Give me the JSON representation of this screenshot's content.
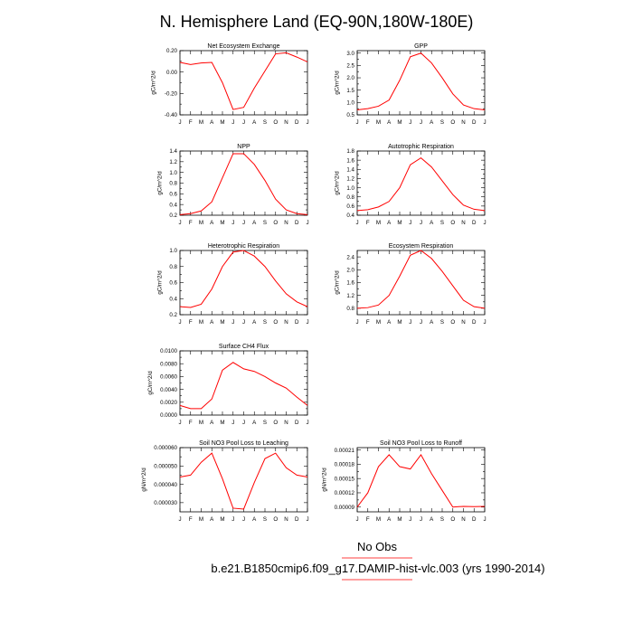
{
  "title": "N. Hemisphere Land (EQ-90N,180W-180E)",
  "legend_label": "No Obs",
  "case_label": "b.e21.B1850cmip6.f09_g17.DAMIP-hist-vlc.003 (yrs 1990-2014)",
  "colors": {
    "series": "#ff0000",
    "legend_line": "#ff0000"
  },
  "chart_data": [
    {
      "type": "line",
      "title": "Net Ecosystem Exchange",
      "ylabel": "gC/m^2/d",
      "categories": [
        "J",
        "F",
        "M",
        "A",
        "M",
        "J",
        "J",
        "A",
        "S",
        "O",
        "N",
        "D",
        "J"
      ],
      "values": [
        0.09,
        0.07,
        0.085,
        0.09,
        -0.1,
        -0.35,
        -0.33,
        -0.15,
        0.01,
        0.17,
        0.18,
        0.14,
        0.095
      ],
      "ylim": [
        -0.4,
        0.2
      ],
      "yticks": [
        "-0.40",
        "-0.20",
        "0.00",
        "0.20"
      ],
      "ytick_values": [
        -0.4,
        -0.2,
        0.0,
        0.2
      ]
    },
    {
      "type": "line",
      "title": "GPP",
      "ylabel": "gC/m^2/d",
      "categories": [
        "J",
        "F",
        "M",
        "A",
        "M",
        "J",
        "J",
        "A",
        "S",
        "O",
        "N",
        "D",
        "J"
      ],
      "values": [
        0.7,
        0.75,
        0.85,
        1.1,
        1.9,
        2.85,
        3.0,
        2.6,
        2.0,
        1.35,
        0.9,
        0.75,
        0.7
      ],
      "ylim": [
        0.5,
        3.1
      ],
      "yticks": [
        "0.5",
        "1.0",
        "1.5",
        "2.0",
        "2.5",
        "3.0"
      ],
      "ytick_values": [
        0.5,
        1.0,
        1.5,
        2.0,
        2.5,
        3.0
      ]
    },
    {
      "type": "line",
      "title": "NPP",
      "ylabel": "gC/m^2/d",
      "categories": [
        "J",
        "F",
        "M",
        "A",
        "M",
        "J",
        "J",
        "A",
        "S",
        "O",
        "N",
        "D",
        "J"
      ],
      "values": [
        0.21,
        0.23,
        0.28,
        0.45,
        0.9,
        1.35,
        1.35,
        1.15,
        0.85,
        0.5,
        0.3,
        0.23,
        0.21
      ],
      "ylim": [
        0.2,
        1.4
      ],
      "yticks": [
        "0.2",
        "0.4",
        "0.6",
        "0.8",
        "1.0",
        "1.2",
        "1.4"
      ],
      "ytick_values": [
        0.2,
        0.4,
        0.6,
        0.8,
        1.0,
        1.2,
        1.4
      ]
    },
    {
      "type": "line",
      "title": "Autotrophic Respiration",
      "ylabel": "gC/m^2/d",
      "categories": [
        "J",
        "F",
        "M",
        "A",
        "M",
        "J",
        "J",
        "A",
        "S",
        "O",
        "N",
        "D",
        "J"
      ],
      "values": [
        0.5,
        0.52,
        0.58,
        0.7,
        1.0,
        1.5,
        1.65,
        1.45,
        1.15,
        0.85,
        0.62,
        0.53,
        0.5
      ],
      "ylim": [
        0.4,
        1.8
      ],
      "yticks": [
        "0.4",
        "0.6",
        "0.8",
        "1.0",
        "1.2",
        "1.4",
        "1.6",
        "1.8"
      ],
      "ytick_values": [
        0.4,
        0.6,
        0.8,
        1.0,
        1.2,
        1.4,
        1.6,
        1.8
      ]
    },
    {
      "type": "line",
      "title": "Heterotrophic Respiration",
      "ylabel": "gC/m^2/d",
      "categories": [
        "J",
        "F",
        "M",
        "A",
        "M",
        "J",
        "J",
        "A",
        "S",
        "O",
        "N",
        "D",
        "J"
      ],
      "values": [
        0.3,
        0.29,
        0.33,
        0.52,
        0.8,
        0.98,
        1.0,
        0.93,
        0.8,
        0.62,
        0.46,
        0.36,
        0.3
      ],
      "ylim": [
        0.2,
        1.0
      ],
      "yticks": [
        "0.2",
        "0.4",
        "0.6",
        "0.8",
        "1.0"
      ],
      "ytick_values": [
        0.2,
        0.4,
        0.6,
        0.8,
        1.0
      ]
    },
    {
      "type": "line",
      "title": "Ecosystem Respiration",
      "ylabel": "gC/m^2/d",
      "categories": [
        "J",
        "F",
        "M",
        "A",
        "M",
        "J",
        "J",
        "A",
        "S",
        "O",
        "N",
        "D",
        "J"
      ],
      "values": [
        0.8,
        0.82,
        0.9,
        1.2,
        1.8,
        2.45,
        2.6,
        2.35,
        1.95,
        1.5,
        1.05,
        0.85,
        0.8
      ],
      "ylim": [
        0.6,
        2.6
      ],
      "yticks": [
        "0.8",
        "1.2",
        "1.6",
        "2.0",
        "2.4"
      ],
      "ytick_values": [
        0.8,
        1.2,
        1.6,
        2.0,
        2.4
      ]
    },
    {
      "type": "line",
      "title": "Surface CH4 Flux",
      "ylabel": "gC/m^2/d",
      "categories": [
        "J",
        "F",
        "M",
        "A",
        "M",
        "J",
        "J",
        "A",
        "S",
        "O",
        "N",
        "D",
        "J"
      ],
      "values": [
        0.0015,
        0.001,
        0.001,
        0.0025,
        0.007,
        0.0082,
        0.0072,
        0.0068,
        0.006,
        0.005,
        0.0042,
        0.0028,
        0.0015
      ],
      "ylim": [
        0.0,
        0.01
      ],
      "yticks": [
        "0.0000",
        "0.0020",
        "0.0040",
        "0.0060",
        "0.0080",
        "0.0100"
      ],
      "ytick_values": [
        0.0,
        0.002,
        0.004,
        0.006,
        0.008,
        0.01
      ]
    },
    {
      "type": "line",
      "title": "Soil NO3 Pool Loss to Leaching",
      "ylabel": "gN/m^2/d",
      "categories": [
        "J",
        "F",
        "M",
        "A",
        "M",
        "J",
        "J",
        "A",
        "S",
        "O",
        "N",
        "D",
        "J"
      ],
      "values": [
        4.4e-05,
        4.5e-05,
        5.2e-05,
        5.7e-05,
        4.3e-05,
        2.7e-05,
        2.65e-05,
        4.1e-05,
        5.4e-05,
        5.7e-05,
        4.9e-05,
        4.5e-05,
        4.4e-05
      ],
      "ylim": [
        2.5e-05,
        6e-05
      ],
      "yticks": [
        "0.000030",
        "0.000040",
        "0.000050",
        "0.000060"
      ],
      "ytick_values": [
        3e-05,
        4e-05,
        5e-05,
        6e-05
      ]
    },
    {
      "type": "line",
      "title": "Soil NO3 Pool Loss to Runoff",
      "ylabel": "gN/m^2/d",
      "categories": [
        "J",
        "F",
        "M",
        "A",
        "M",
        "J",
        "J",
        "A",
        "S",
        "O",
        "N",
        "D",
        "J"
      ],
      "values": [
        9e-05,
        0.00012,
        0.000175,
        0.0002,
        0.000175,
        0.00017,
        0.0002,
        0.00016,
        0.000125,
        9e-05,
        9.15e-05,
        9.1e-05,
        9.15e-05
      ],
      "ylim": [
        8e-05,
        0.000215
      ],
      "yticks": [
        "0.00009",
        "0.00012",
        "0.00015",
        "0.00018",
        "0.00021"
      ],
      "ytick_values": [
        9e-05,
        0.00012,
        0.00015,
        0.00018,
        0.00021
      ]
    }
  ]
}
